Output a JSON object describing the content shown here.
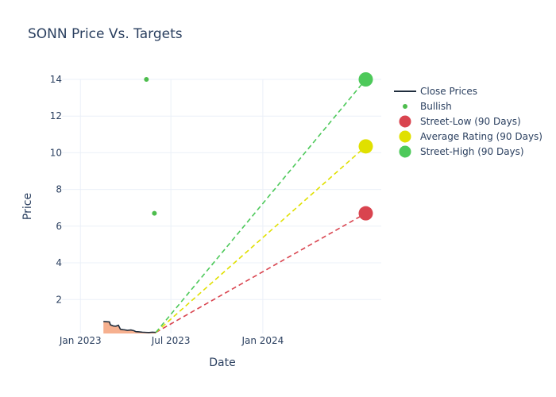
{
  "chart_data": {
    "type": "line",
    "title": "SONN Price Vs. Targets",
    "xlabel": "Date",
    "ylabel": "Price",
    "x_range": [
      "2022-11-25",
      "2024-08-25"
    ],
    "y_range": [
      0.15,
      14
    ],
    "y_ticks": [
      2,
      4,
      6,
      8,
      10,
      12,
      14
    ],
    "x_ticks": [
      {
        "date": "2023-01-01",
        "label": "Jan 2023"
      },
      {
        "date": "2023-07-01",
        "label": "Jul 2023"
      },
      {
        "date": "2024-01-01",
        "label": "Jan 2024"
      }
    ],
    "grid": true,
    "legend_position": "right",
    "close_prices": {
      "name": "Close Prices",
      "color": "#1f2d3d",
      "fill_color": "#f6b08f",
      "x": [
        "2023-02-16",
        "2023-02-28",
        "2023-03-02",
        "2023-03-08",
        "2023-03-13",
        "2023-03-18",
        "2023-03-22",
        "2023-03-27",
        "2023-03-30",
        "2023-04-05",
        "2023-04-12",
        "2023-04-18",
        "2023-04-22",
        "2023-04-28",
        "2023-05-05",
        "2023-05-12",
        "2023-05-18",
        "2023-05-25",
        "2023-06-01"
      ],
      "y": [
        0.8,
        0.78,
        0.62,
        0.56,
        0.55,
        0.6,
        0.38,
        0.36,
        0.35,
        0.32,
        0.34,
        0.3,
        0.25,
        0.24,
        0.22,
        0.21,
        0.2,
        0.22,
        0.21
      ]
    },
    "bullish": {
      "name": "Bullish",
      "color": "#4dbd4d",
      "x": [
        "2023-05-13",
        "2023-05-29"
      ],
      "y": [
        14,
        6.7
      ]
    },
    "targets": [
      {
        "name": "Street-Low (90 Days)",
        "color": "#d9444f",
        "x0": "2023-06-01",
        "y0": 0.21,
        "x1": "2024-07-25",
        "y1": 6.7
      },
      {
        "name": "Average Rating (90 Days)",
        "color": "#e0e000",
        "x0": "2023-06-01",
        "y0": 0.21,
        "x1": "2024-07-25",
        "y1": 10.35
      },
      {
        "name": "Street-High (90 Days)",
        "color": "#4dc95a",
        "x0": "2023-06-01",
        "y0": 0.21,
        "x1": "2024-07-25",
        "y1": 14
      }
    ]
  }
}
